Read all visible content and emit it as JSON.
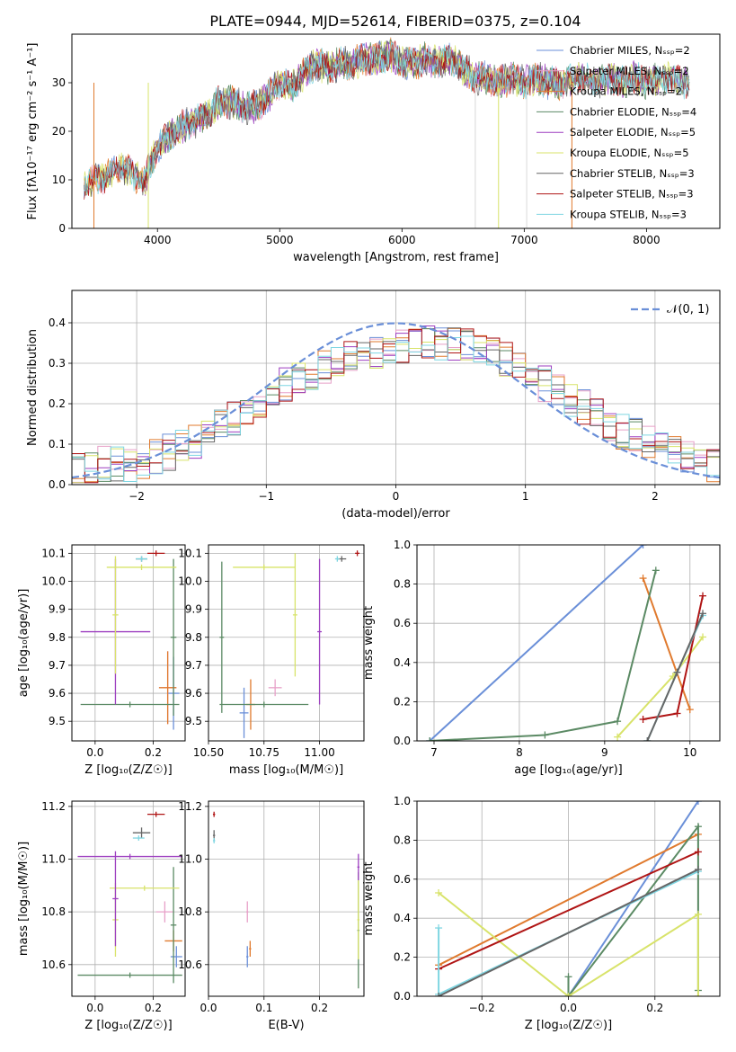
{
  "title": "PLATE=0944, MJD=52614, FIBERID=0375, z=0.104",
  "colors": {
    "chabrier_miles": "#6a8fd8",
    "salpeter_miles": "#e7a0c8",
    "kroupa_miles": "#e07a2e",
    "chabrier_elodie": "#5b8a64",
    "salpeter_elodie": "#9d3fc0",
    "kroupa_elodie": "#d8e36a",
    "chabrier_stelib": "#666666",
    "salpeter_stelib": "#b01515",
    "kroupa_stelib": "#7fd6e2"
  },
  "chart_data": [
    {
      "type": "line",
      "title": "PLATE=0944, MJD=52614, FIBERID=0375, z=0.104",
      "xlabel": "wavelength [Angstrom, rest frame]",
      "ylabel": "Flux [fλ10⁻¹⁷ erg cm⁻² s⁻¹ A⁻¹]",
      "xlim": [
        3300,
        8600
      ],
      "ylim": [
        0,
        40
      ],
      "xticks": [
        "4000",
        "5000",
        "6000",
        "7000",
        "8000"
      ],
      "yticks": [
        "0",
        "10",
        "20",
        "30"
      ],
      "legend": "top-right",
      "grid": false,
      "spectrum": {
        "x": [
          3400,
          3500,
          3600,
          3700,
          3800,
          3900,
          4000,
          4100,
          4200,
          4300,
          4400,
          4500,
          4600,
          4700,
          4800,
          4900,
          5000,
          5100,
          5200,
          5300,
          5400,
          5500,
          5600,
          5700,
          5800,
          5900,
          6000,
          6100,
          6200,
          6300,
          6400,
          6500,
          6600,
          6700,
          6800,
          6900,
          7000,
          7100,
          7200,
          7300,
          7400,
          7500,
          7600,
          7700,
          7800,
          7900,
          8000,
          8100,
          8200,
          8300
        ],
        "y": [
          9,
          10,
          11,
          13,
          11,
          10,
          17,
          19,
          21,
          22,
          23,
          26,
          26,
          25,
          25,
          27,
          30,
          29,
          32,
          34,
          33,
          34,
          34,
          35,
          35,
          36,
          34,
          34,
          35,
          34,
          35,
          33,
          31,
          31,
          30,
          31,
          30,
          31,
          30,
          30,
          31,
          31,
          30,
          31,
          30,
          31,
          30,
          31,
          31,
          30
        ]
      },
      "series": [
        {
          "name": "Chabrier MILES, N_SSP=2",
          "color": "#6a8fd8"
        },
        {
          "name": "Salpeter MILES, N_SSP=2",
          "color": "#e7a0c8"
        },
        {
          "name": "Kroupa MILES, N_SSP=2",
          "color": "#e07a2e"
        },
        {
          "name": "Chabrier ELODIE, N_SSP=4",
          "color": "#5b8a64"
        },
        {
          "name": "Salpeter ELODIE, N_SSP=5",
          "color": "#9d3fc0"
        },
        {
          "name": "Kroupa ELODIE, N_SSP=5",
          "color": "#d8e36a"
        },
        {
          "name": "Chabrier STELIB, N_SSP=3",
          "color": "#666666"
        },
        {
          "name": "Salpeter STELIB, N_SSP=3",
          "color": "#b01515"
        },
        {
          "name": "Kroupa STELIB, N_SSP=3",
          "color": "#7fd6e2"
        }
      ]
    },
    {
      "type": "line",
      "xlabel": "(data-model)/error",
      "ylabel": "Normed distribution",
      "xlim": [
        -2.5,
        2.5
      ],
      "ylim": [
        0,
        0.48
      ],
      "xticks": [
        "−2",
        "−1",
        "0",
        "1",
        "2"
      ],
      "yticks": [
        "0.0",
        "0.1",
        "0.2",
        "0.3",
        "0.4"
      ],
      "grid": true,
      "legend": "top-right",
      "legend_label": "𝒩(0, 1)",
      "gaussian": {
        "mean": 0,
        "sigma": 1,
        "color": "#6a8fd8"
      },
      "hist": {
        "bins_x": [
          -2.5,
          -2.4,
          -2.3,
          -2.2,
          -2.1,
          -2.0,
          -1.9,
          -1.8,
          -1.7,
          -1.6,
          -1.5,
          -1.4,
          -1.3,
          -1.2,
          -1.1,
          -1.0,
          -0.9,
          -0.8,
          -0.7,
          -0.6,
          -0.5,
          -0.4,
          -0.3,
          -0.2,
          -0.1,
          0.0,
          0.1,
          0.2,
          0.3,
          0.4,
          0.5,
          0.6,
          0.7,
          0.8,
          0.9,
          1.0,
          1.1,
          1.2,
          1.3,
          1.4,
          1.5,
          1.6,
          1.7,
          1.8,
          1.9,
          2.0,
          2.1,
          2.2,
          2.3,
          2.4
        ],
        "mean_y": [
          0.04,
          0.04,
          0.05,
          0.05,
          0.05,
          0.06,
          0.07,
          0.08,
          0.09,
          0.11,
          0.12,
          0.14,
          0.16,
          0.19,
          0.21,
          0.23,
          0.25,
          0.27,
          0.28,
          0.29,
          0.3,
          0.31,
          0.32,
          0.33,
          0.33,
          0.34,
          0.35,
          0.35,
          0.35,
          0.35,
          0.35,
          0.34,
          0.33,
          0.31,
          0.29,
          0.27,
          0.25,
          0.23,
          0.21,
          0.19,
          0.17,
          0.15,
          0.13,
          0.12,
          0.11,
          0.09,
          0.08,
          0.07,
          0.06,
          0.05
        ]
      }
    },
    {
      "type": "scatter",
      "xlabel": "Z [log₁₀(Z/Z☉)]",
      "ylabel": "age  [log₁₀(age/yr)]",
      "xlim": [
        -0.08,
        0.31
      ],
      "ylim": [
        9.43,
        10.13
      ],
      "xticks": [
        "0.0",
        "0.2"
      ],
      "yticks": [
        "9.5",
        "9.6",
        "9.7",
        "9.8",
        "9.9",
        "10.0",
        "10.1"
      ],
      "grid": true,
      "points": [
        {
          "model": "chabrier_miles",
          "x": 0.27,
          "y": 9.6,
          "xerr": 0.02,
          "yerr": 0.13
        },
        {
          "model": "salpeter_miles",
          "x": 0.25,
          "y": 9.62,
          "xerr": 0.03,
          "yerr": 0.13
        },
        {
          "model": "kroupa_miles",
          "x": 0.25,
          "y": 9.62,
          "xerr": 0.03,
          "yerr": 0.13
        },
        {
          "model": "chabrier_elodie",
          "x": 0.12,
          "y": 9.56,
          "xerr": 0.17,
          "yerr": 0.01
        },
        {
          "model": "chabrier_elodie",
          "x": 0.27,
          "y": 9.8,
          "xerr": 0.01,
          "yerr": 0.28
        },
        {
          "model": "salpeter_elodie",
          "x": 0.07,
          "y": 9.82,
          "xerr": 0.12,
          "yerr": 0.26
        },
        {
          "model": "kroupa_elodie",
          "x": 0.16,
          "y": 10.05,
          "xerr": 0.12,
          "yerr": 0.01
        },
        {
          "model": "kroupa_elodie",
          "x": 0.07,
          "y": 9.88,
          "xerr": 0.01,
          "yerr": 0.21
        },
        {
          "model": "chabrier_stelib",
          "x": 0.16,
          "y": 10.08,
          "xerr": 0.02,
          "yerr": 0.01
        },
        {
          "model": "salpeter_stelib",
          "x": 0.21,
          "y": 10.1,
          "xerr": 0.03,
          "yerr": 0.01
        },
        {
          "model": "kroupa_stelib",
          "x": 0.16,
          "y": 10.08,
          "xerr": 0.02,
          "yerr": 0.01
        }
      ]
    },
    {
      "type": "scatter",
      "xlabel": "mass [log₁₀(M/M☉)]",
      "xlim": [
        10.5,
        11.2
      ],
      "ylim": [
        9.43,
        10.13
      ],
      "xticks": [
        "10.50",
        "10.75",
        "11.00"
      ],
      "yticks": [
        "9.5",
        "9.6",
        "9.7",
        "9.8",
        "9.9",
        "10.0",
        "10.1"
      ],
      "grid": true,
      "points": [
        {
          "model": "chabrier_miles",
          "x": 10.66,
          "y": 9.53,
          "xerr": 0.02,
          "yerr": 0.09
        },
        {
          "model": "kroupa_miles",
          "x": 10.69,
          "y": 9.56,
          "xerr": 0.02,
          "yerr": 0.09
        },
        {
          "model": "salpeter_miles",
          "x": 10.8,
          "y": 9.62,
          "xerr": 0.03,
          "yerr": 0.03
        },
        {
          "model": "chabrier_elodie",
          "x": 10.56,
          "y": 9.8,
          "xerr": 0.01,
          "yerr": 0.27
        },
        {
          "model": "chabrier_elodie",
          "x": 10.75,
          "y": 9.56,
          "xerr": 0.2,
          "yerr": 0.01
        },
        {
          "model": "kroupa_elodie",
          "x": 10.89,
          "y": 9.88,
          "xerr": 0.01,
          "yerr": 0.22
        },
        {
          "model": "kroupa_elodie",
          "x": 10.75,
          "y": 10.05,
          "xerr": 0.14,
          "yerr": 0.01
        },
        {
          "model": "salpeter_elodie",
          "x": 11.0,
          "y": 9.82,
          "xerr": 0.01,
          "yerr": 0.26
        },
        {
          "model": "chabrier_stelib",
          "x": 11.1,
          "y": 10.08,
          "xerr": 0.02,
          "yerr": 0.01
        },
        {
          "model": "salpeter_stelib",
          "x": 11.17,
          "y": 10.1,
          "xerr": 0.01,
          "yerr": 0.01
        },
        {
          "model": "kroupa_stelib",
          "x": 11.08,
          "y": 10.08,
          "xerr": 0.01,
          "yerr": 0.01
        }
      ]
    },
    {
      "type": "line",
      "xlabel": "age  [log₁₀(age/yr)]",
      "ylabel": "mass weight",
      "xlim": [
        6.8,
        10.35
      ],
      "ylim": [
        0,
        1.0
      ],
      "xticks": [
        "7",
        "8",
        "9",
        "10"
      ],
      "yticks": [
        "0.0",
        "0.2",
        "0.4",
        "0.6",
        "0.8",
        "1.0"
      ],
      "grid": true,
      "series": [
        {
          "model": "chabrier_miles",
          "x": [
            6.95,
            9.45
          ],
          "y": [
            0.0,
            1.0
          ]
        },
        {
          "model": "kroupa_miles",
          "x": [
            9.45,
            10.0
          ],
          "y": [
            0.83,
            0.16
          ]
        },
        {
          "model": "chabrier_elodie",
          "x": [
            6.95,
            8.3,
            9.15,
            9.6
          ],
          "y": [
            0.0,
            0.03,
            0.1,
            0.87
          ]
        },
        {
          "model": "kroupa_elodie",
          "x": [
            9.15,
            9.8,
            10.15
          ],
          "y": [
            0.02,
            0.33,
            0.53
          ]
        },
        {
          "model": "salpeter_stelib",
          "x": [
            9.45,
            9.85,
            10.15
          ],
          "y": [
            0.11,
            0.14,
            0.74
          ]
        },
        {
          "model": "kroupa_stelib",
          "x": [
            9.5,
            9.85,
            10.15
          ],
          "y": [
            0.0,
            0.35,
            0.64
          ]
        },
        {
          "model": "chabrier_stelib",
          "x": [
            9.5,
            9.85,
            10.15
          ],
          "y": [
            0.0,
            0.35,
            0.65
          ]
        }
      ]
    },
    {
      "type": "scatter",
      "xlabel": "Z [log₁₀(Z/Z☉)]",
      "ylabel": "mass [log₁₀(M/M☉)]",
      "xlim": [
        -0.08,
        0.31
      ],
      "ylim": [
        10.48,
        11.22
      ],
      "xticks": [
        "0.0",
        "0.2"
      ],
      "yticks": [
        "10.6",
        "10.8",
        "11.0",
        "11.2"
      ],
      "grid": true,
      "points": [
        {
          "model": "chabrier_miles",
          "x": 0.28,
          "y": 10.63,
          "xerr": 0.02,
          "yerr": 0.04
        },
        {
          "model": "kroupa_miles",
          "x": 0.27,
          "y": 10.69,
          "xerr": 0.03,
          "yerr": 0.04
        },
        {
          "model": "salpeter_miles",
          "x": 0.24,
          "y": 10.8,
          "xerr": 0.03,
          "yerr": 0.04
        },
        {
          "model": "chabrier_elodie",
          "x": 0.12,
          "y": 10.56,
          "xerr": 0.18,
          "yerr": 0.01
        },
        {
          "model": "chabrier_elodie",
          "x": 0.27,
          "y": 10.75,
          "xerr": 0.01,
          "yerr": 0.22
        },
        {
          "model": "kroupa_elodie",
          "x": 0.17,
          "y": 10.89,
          "xerr": 0.12,
          "yerr": 0.01
        },
        {
          "model": "kroupa_elodie",
          "x": 0.07,
          "y": 10.77,
          "xerr": 0.01,
          "yerr": 0.14
        },
        {
          "model": "salpeter_elodie",
          "x": 0.12,
          "y": 11.01,
          "xerr": 0.18,
          "yerr": 0.01
        },
        {
          "model": "salpeter_elodie",
          "x": 0.07,
          "y": 10.85,
          "xerr": 0.01,
          "yerr": 0.18
        },
        {
          "model": "chabrier_stelib",
          "x": 0.16,
          "y": 11.1,
          "xerr": 0.03,
          "yerr": 0.02
        },
        {
          "model": "salpeter_stelib",
          "x": 0.21,
          "y": 11.17,
          "xerr": 0.03,
          "yerr": 0.01
        },
        {
          "model": "kroupa_stelib",
          "x": 0.15,
          "y": 11.08,
          "xerr": 0.02,
          "yerr": 0.01
        }
      ]
    },
    {
      "type": "scatter",
      "xlabel": "E(B-V)",
      "xlim": [
        0.0,
        0.28
      ],
      "ylim": [
        10.48,
        11.22
      ],
      "xticks": [
        "0.0",
        "0.1",
        "0.2"
      ],
      "yticks": [
        "10.6",
        "10.8",
        "11.0",
        "11.2"
      ],
      "grid": true,
      "points": [
        {
          "model": "chabrier_miles",
          "x": 0.07,
          "y": 10.63,
          "xerr": 0.002,
          "yerr": 0.04
        },
        {
          "model": "salpeter_miles",
          "x": 0.07,
          "y": 10.8,
          "xerr": 0.002,
          "yerr": 0.04
        },
        {
          "model": "kroupa_miles",
          "x": 0.075,
          "y": 10.66,
          "xerr": 0.002,
          "yerr": 0.03
        },
        {
          "model": "chabrier_elodie",
          "x": 0.27,
          "y": 10.73,
          "xerr": 0.002,
          "yerr": 0.22
        },
        {
          "model": "salpeter_elodie",
          "x": 0.27,
          "y": 10.97,
          "xerr": 0.002,
          "yerr": 0.05
        },
        {
          "model": "kroupa_elodie",
          "x": 0.27,
          "y": 10.77,
          "xerr": 0.002,
          "yerr": 0.15
        },
        {
          "model": "chabrier_stelib",
          "x": 0.01,
          "y": 11.09,
          "xerr": 0.002,
          "yerr": 0.02
        },
        {
          "model": "salpeter_stelib",
          "x": 0.01,
          "y": 11.17,
          "xerr": 0.002,
          "yerr": 0.01
        },
        {
          "model": "kroupa_stelib",
          "x": 0.01,
          "y": 11.07,
          "xerr": 0.002,
          "yerr": 0.01
        }
      ]
    },
    {
      "type": "line",
      "xlabel": "Z [log₁₀(Z/Z☉)]",
      "ylabel": "mass weight",
      "xlim": [
        -0.35,
        0.35
      ],
      "ylim": [
        0,
        1.0
      ],
      "xticks": [
        "−0.2",
        "0.0",
        "0.2"
      ],
      "yticks": [
        "0.0",
        "0.2",
        "0.4",
        "0.6",
        "0.8",
        "1.0"
      ],
      "grid": true,
      "series": [
        {
          "model": "chabrier_miles",
          "x": [
            0.0,
            0.3
          ],
          "y": [
            0.0,
            1.0
          ]
        },
        {
          "model": "kroupa_miles",
          "x": [
            -0.3,
            0.3
          ],
          "y": [
            0.16,
            0.83
          ]
        },
        {
          "model": "chabrier_elodie",
          "x": [
            0.0,
            0.0,
            0.3,
            0.3
          ],
          "y": [
            0.1,
            0.0,
            0.87,
            0.03
          ]
        },
        {
          "model": "kroupa_elodie",
          "x": [
            -0.3,
            0.0,
            0.3,
            0.3
          ],
          "y": [
            0.53,
            0.0,
            0.42,
            0.0
          ]
        },
        {
          "model": "salpeter_stelib",
          "x": [
            -0.3,
            0.3
          ],
          "y": [
            0.14,
            0.74
          ]
        },
        {
          "model": "kroupa_stelib",
          "x": [
            -0.3,
            -0.3,
            0.3
          ],
          "y": [
            0.35,
            0.01,
            0.64
          ]
        },
        {
          "model": "chabrier_stelib",
          "x": [
            -0.3,
            0.3
          ],
          "y": [
            0.0,
            0.65
          ]
        }
      ]
    }
  ]
}
